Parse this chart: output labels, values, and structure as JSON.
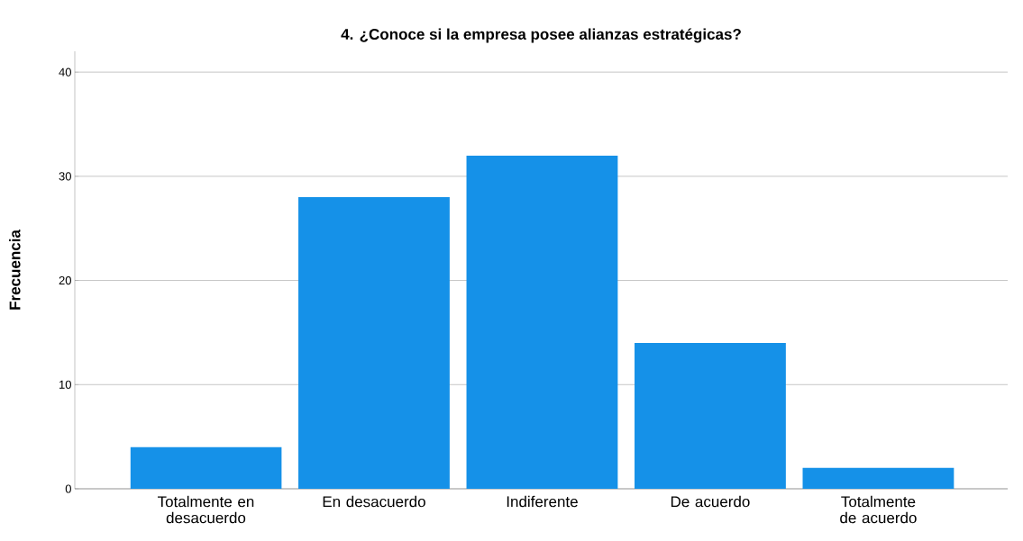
{
  "chart_data": {
    "type": "bar",
    "title": "4. ¿Conoce si la empresa posee alianzas estratégicas?",
    "ylabel": "Frecuencia",
    "categories": [
      "Totalmente en desacuerdo",
      "En desacuerdo",
      "Indiferente",
      "De acuerdo",
      "Totalmente de acuerdo"
    ],
    "values": [
      4,
      28,
      32,
      14,
      2
    ],
    "color": "#1591e8",
    "ylim": [
      0,
      42
    ],
    "yticks": [
      0,
      10,
      20,
      30,
      40
    ],
    "grid": "y"
  }
}
